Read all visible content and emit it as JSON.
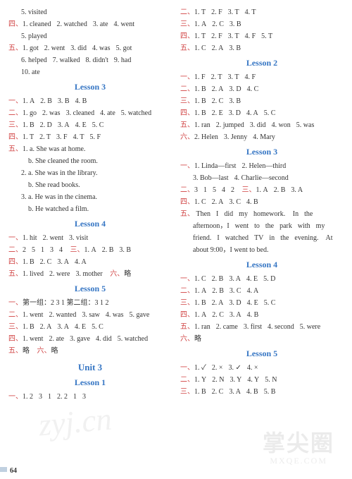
{
  "left": {
    "top": [
      {
        "cls": "line indent1",
        "text": "5. visited"
      },
      {
        "cls": "line",
        "text": "四、1. cleaned  2. watched  3. ate  4. went",
        "red": "四、"
      },
      {
        "cls": "line indent1",
        "text": "5. played"
      },
      {
        "cls": "line",
        "text": "五、1. got  2. went  3. did  4. was  5. got",
        "red": "五、"
      },
      {
        "cls": "line indent1",
        "text": "6. helped  7. walked  8. didn't  9. had"
      },
      {
        "cls": "line indent1",
        "text": "10. ate"
      }
    ],
    "l3_title": "Lesson 3",
    "l3": [
      {
        "cls": "line",
        "text": "一、1. A  2. B  3. B  4. B",
        "red": "一、"
      },
      {
        "cls": "line",
        "text": "二、1. go  2. was  3. cleaned  4. ate  5. watched",
        "red": "二、"
      },
      {
        "cls": "line",
        "text": "三、1. B  2. D  3. A  4. E  5. C",
        "red": "三、"
      },
      {
        "cls": "line",
        "text": "四、1. T  2. T  3. F  4. T  5. F",
        "red": "四、"
      },
      {
        "cls": "line",
        "text": "五、1. a. She was at home.",
        "red": "五、"
      },
      {
        "cls": "line indent2",
        "text": "b. She cleaned the room."
      },
      {
        "cls": "line indent1",
        "text": "2. a. She was in the library."
      },
      {
        "cls": "line indent2",
        "text": "b. She read books."
      },
      {
        "cls": "line indent1",
        "text": "3. a. He was in the cinema."
      },
      {
        "cls": "line indent2",
        "text": "b. He watched a film."
      }
    ],
    "l4_title": "Lesson 4",
    "l4": [
      {
        "cls": "line",
        "text": "一、1. hit  2. went  3. visit",
        "red": "一、"
      },
      {
        "cls": "line",
        "text": "二、2  5  1  3  4   三、1. A  2. B  3. B",
        "red": "二、",
        "red2": "三、"
      },
      {
        "cls": "line",
        "text": "四、1. B  2. C  3. A  4. A",
        "red": "四、"
      },
      {
        "cls": "line",
        "text": "五、1. lived  2. were  3. mother   六、略",
        "red": "五、",
        "red2": "六、"
      }
    ],
    "l5_title": "Lesson 5",
    "l5": [
      {
        "cls": "line",
        "text": "一、第一组：2 3 1 第二组：3 1 2",
        "red": "一、"
      },
      {
        "cls": "line",
        "text": "二、1. went  2. wanted  3. saw  4. was  5. gave",
        "red": "二、"
      },
      {
        "cls": "line",
        "text": "三、1. B  2. A  3. A  4. E  5. C",
        "red": "三、"
      },
      {
        "cls": "line",
        "text": "四、1. went  2. ate  3. gave  4. did  5. watched",
        "red": "四、"
      },
      {
        "cls": "line",
        "text": "五、略   六、略",
        "red": "五、",
        "red2": "六、"
      }
    ],
    "u3_title": "Unit 3",
    "u3l1_title": "Lesson 1",
    "u3l1": [
      {
        "cls": "line",
        "text": "一、1. 2  3  1  2. 2  1  3",
        "red": "一、"
      }
    ]
  },
  "right": {
    "top": [
      {
        "cls": "line",
        "text": "二、1. T  2. F  3. T  4. T",
        "red": "二、"
      },
      {
        "cls": "line",
        "text": "三、1. A  2. C  3. B",
        "red": "三、"
      },
      {
        "cls": "line",
        "text": "四、1. T  2. F  3. T  4. F  5. T",
        "red": "四、"
      },
      {
        "cls": "line",
        "text": "五、1. C  2. A  3. B",
        "red": "五、"
      }
    ],
    "l2_title": "Lesson 2",
    "l2": [
      {
        "cls": "line",
        "text": "一、1. F  2. T  3. T  4. F",
        "red": "一、"
      },
      {
        "cls": "line",
        "text": "二、1. B  2. A  3. D  4. C",
        "red": "二、"
      },
      {
        "cls": "line",
        "text": "三、1. B  2. C  3. B",
        "red": "三、"
      },
      {
        "cls": "line",
        "text": "四、1. B  2. E  3. D  4. A  5. C",
        "red": "四、"
      },
      {
        "cls": "line",
        "text": "五、1. ran  2. jumped  3. did  4. won  5. was",
        "red": "五、"
      },
      {
        "cls": "line",
        "text": "六、2. Helen  3. Jenny  4. Mary",
        "red": "六、"
      }
    ],
    "l3_title": "Lesson 3",
    "l3": [
      {
        "cls": "line",
        "text": "一、1. Linda—first  2. Helen—third",
        "red": "一、"
      },
      {
        "cls": "line indent1",
        "text": "3. Bob—last  4. Charlie—second"
      },
      {
        "cls": "line",
        "text": "二、3  1  5  4  2   三、1. A  2. B  3. A",
        "red": "二、",
        "red2": "三、"
      },
      {
        "cls": "line",
        "text": "四、1. C  2. A  3. C  4. B",
        "red": "四、"
      },
      {
        "cls": "line",
        "text": "五、 Then  I  did  my  homework.   In  the",
        "red": "五、"
      },
      {
        "cls": "line indent1",
        "text": "afternoon，I  went  to  the  park  with  my"
      },
      {
        "cls": "line indent1",
        "text": "friend.  I  watched  TV  in  the  evening.   At"
      },
      {
        "cls": "line indent1",
        "text": "about 9:00，I went to bed."
      }
    ],
    "l4_title": "Lesson 4",
    "l4": [
      {
        "cls": "line",
        "text": "一、1. C  2. B  3. A  4. E  5. D",
        "red": "一、"
      },
      {
        "cls": "line",
        "text": "二、1. A  2. B  3. C  4. A",
        "red": "二、"
      },
      {
        "cls": "line",
        "text": "三、1. B  2. A  3. D  4. E  5. C",
        "red": "三、"
      },
      {
        "cls": "line",
        "text": "四、1. A  2. C  3. A  4. B",
        "red": "四、"
      },
      {
        "cls": "line",
        "text": "五、1. ran  2. came  3. first  4. second  5. were",
        "red": "五、"
      },
      {
        "cls": "line",
        "text": "六、略",
        "red": "六、"
      }
    ],
    "l5_title": "Lesson 5",
    "l5": [
      {
        "cls": "line",
        "text": "一、1. ✓  2. ×  3. ✓  4. ×",
        "red": "一、"
      },
      {
        "cls": "line",
        "text": "二、1. Y  2. N  3. Y  4. Y  5. N",
        "red": "二、"
      },
      {
        "cls": "line",
        "text": "三、1. B  2. C  3. A  4. B  5. B",
        "red": "三、"
      }
    ]
  },
  "pagenum": "64",
  "wm1": "zyj.cn",
  "wm2": "掌尖圈",
  "wm2s": "MXQE.COM"
}
